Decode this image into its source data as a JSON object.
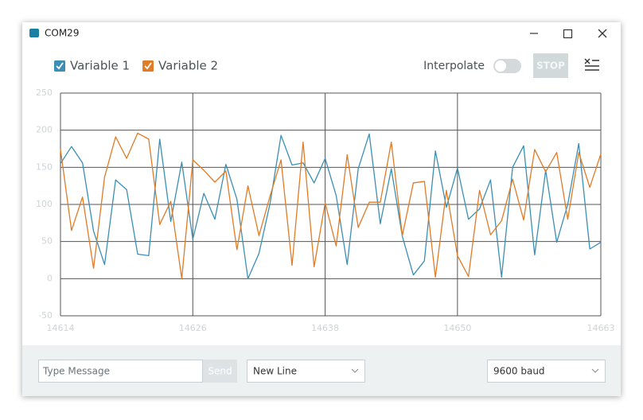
{
  "window": {
    "title": "COM29"
  },
  "toolbar": {
    "interpolate": "Interpolate",
    "stop": "STOP"
  },
  "chart_data": {
    "type": "line",
    "x": [
      14614,
      14615,
      14616,
      14617,
      14618,
      14619,
      14620,
      14621,
      14622,
      14623,
      14624,
      14625,
      14626,
      14627,
      14628,
      14629,
      14630,
      14631,
      14632,
      14633,
      14634,
      14635,
      14636,
      14637,
      14638,
      14639,
      14640,
      14641,
      14642,
      14643,
      14644,
      14645,
      14646,
      14647,
      14648,
      14649,
      14650,
      14651,
      14652,
      14653,
      14654,
      14655,
      14656,
      14657,
      14658,
      14659,
      14660,
      14661,
      14662,
      14663
    ],
    "xlim": [
      14614,
      14663
    ],
    "xticks": [
      14614,
      14626,
      14638,
      14650,
      14663
    ],
    "ylim": [
      -50,
      250
    ],
    "yticks": [
      -50,
      0,
      50,
      100,
      150,
      200,
      250
    ],
    "grid": true,
    "series": [
      {
        "name": "Variable 1",
        "color": "#3b8fb4",
        "values": [
          155,
          178,
          156,
          64,
          19,
          133,
          120,
          33,
          31,
          188,
          77,
          157,
          53,
          115,
          80,
          154,
          107,
          0,
          34,
          101,
          193,
          153,
          156,
          129,
          162,
          112,
          19,
          148,
          195,
          74,
          148,
          57,
          5,
          24,
          172,
          96,
          149,
          80,
          94,
          133,
          2,
          150,
          179,
          32,
          146,
          49,
          100,
          182,
          40,
          49
        ]
      },
      {
        "name": "Variable 2",
        "color": "#e07b26",
        "values": [
          174,
          65,
          110,
          14,
          137,
          191,
          162,
          196,
          188,
          73,
          104,
          0,
          160,
          146,
          130,
          145,
          39,
          125,
          58,
          111,
          160,
          18,
          184,
          16,
          102,
          44,
          167,
          69,
          103,
          103,
          184,
          58,
          129,
          131,
          2,
          119,
          31,
          3,
          119,
          59,
          78,
          134,
          79,
          174,
          144,
          170,
          80,
          170,
          123,
          168
        ]
      }
    ]
  },
  "footer": {
    "message_placeholder": "Type Message",
    "send": "Send",
    "line_ending": "New Line",
    "baud": "9600 baud"
  }
}
